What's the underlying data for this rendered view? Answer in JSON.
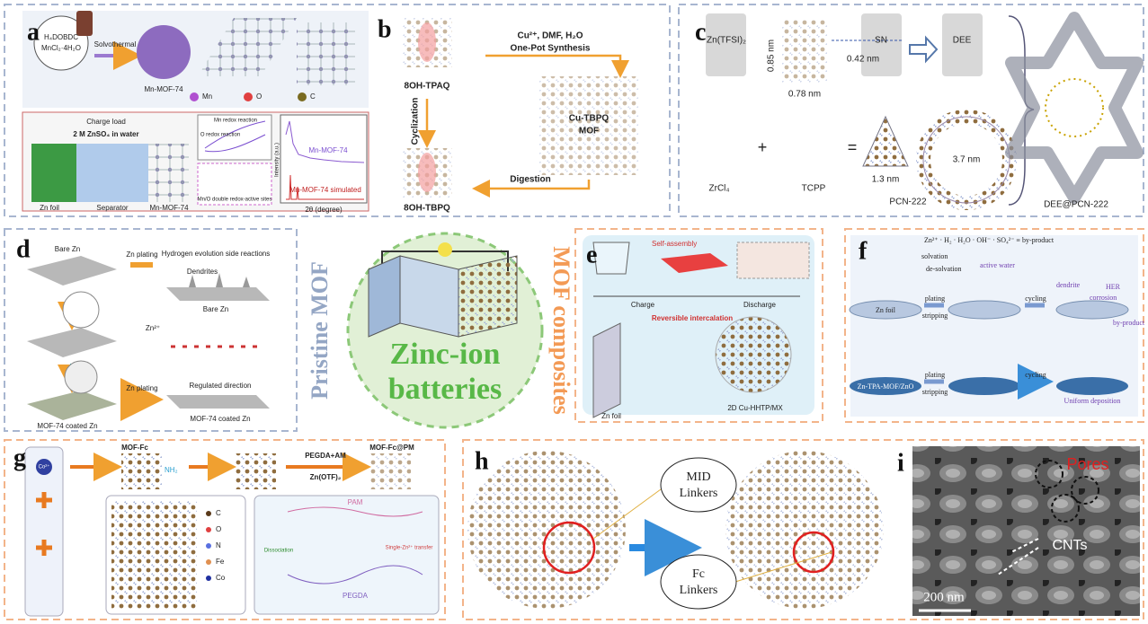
{
  "panel_a": {
    "label": "a",
    "texts": [
      "H₄DOBDC",
      "MnCl₂·4H₂O",
      "Solvothermal",
      "Mn-MOF-74",
      "Mn",
      "O",
      "C",
      "Charge load",
      "2 M ZnSO₄ in water",
      "Zn foil",
      "Separator",
      "Mn-MOF-74",
      "Mn redox reaction",
      "O redox reaction",
      "Mn/O double redox-active sites",
      "Mn-MOF-74",
      "Mn-MOF-74 simulated",
      "Intensity (a.u.)",
      "2θ (degree)"
    ]
  },
  "panel_b": {
    "label": "b",
    "texts": [
      "8OH-TPAQ",
      "Cu²⁺, DMF, H₂O",
      "One-Pot Synthesis",
      "Cu-TBPQ",
      "MOF",
      "Cyclization",
      "Digestion",
      "8OH-TBPQ"
    ]
  },
  "panel_c": {
    "label": "c",
    "texts": [
      "Zn(TFSI)₂",
      "0.85 nm",
      "0.78 nm",
      "0.42 nm",
      "SN",
      "DEE",
      "ZrCl₄",
      "+",
      "TCPP",
      "=",
      "1.3 nm",
      "PCN-222",
      "3.7 nm",
      "DEE@PCN-222"
    ]
  },
  "panel_d": {
    "label": "d",
    "texts": [
      "Bare Zn",
      "Zn plating",
      "Hydrogen evolution side reactions",
      "Dendrites",
      "Bare Zn",
      "Zn²⁺",
      "Zn plating",
      "Regulated direction",
      "MOF-74 coated Zn",
      "MOF-74 coated Zn"
    ]
  },
  "center": {
    "pristine": "Pristine MOF",
    "composites": "MOF composites",
    "title_line1": "Zinc-ion",
    "title_line2": "batteries"
  },
  "panel_e": {
    "label": "e",
    "texts": [
      "Self-assembly",
      "Charge",
      "Discharge",
      "Reversible intercalation",
      "Zn foil",
      "2D Cu-HHTP/MX"
    ]
  },
  "panel_f": {
    "label": "f",
    "texts": [
      "Zn²⁺ · H₂ · H₂O · OH⁻ · SO₄²⁻ ≡ by-product",
      "solvation",
      "de-solvation",
      "active water",
      "plating",
      "stripping",
      "cycling",
      "dendrite",
      "HER",
      "corrosion",
      "by-product",
      "Zn foil",
      "Zn-TPA-MOF/ZnO",
      "plating",
      "stripping",
      "cycling",
      "Uniform deposition"
    ]
  },
  "panel_g": {
    "label": "g",
    "texts": [
      "Co²⁺",
      "MOF-Fc",
      "NH₂",
      "PEGDA+AM",
      "Zn(OTF)₂",
      "MOF-Fc@PM",
      "C",
      "O",
      "N",
      "Fe",
      "Co",
      "PAM",
      "PEGDA",
      "Dissociation",
      "Single-Zn²⁺ transfer"
    ]
  },
  "panel_h": {
    "label": "h",
    "texts": [
      "MID",
      "Linkers",
      "Fc",
      "Linkers"
    ]
  },
  "panel_i": {
    "label": "i",
    "texts": [
      "Pores",
      "CNTs",
      "200 nm"
    ]
  }
}
